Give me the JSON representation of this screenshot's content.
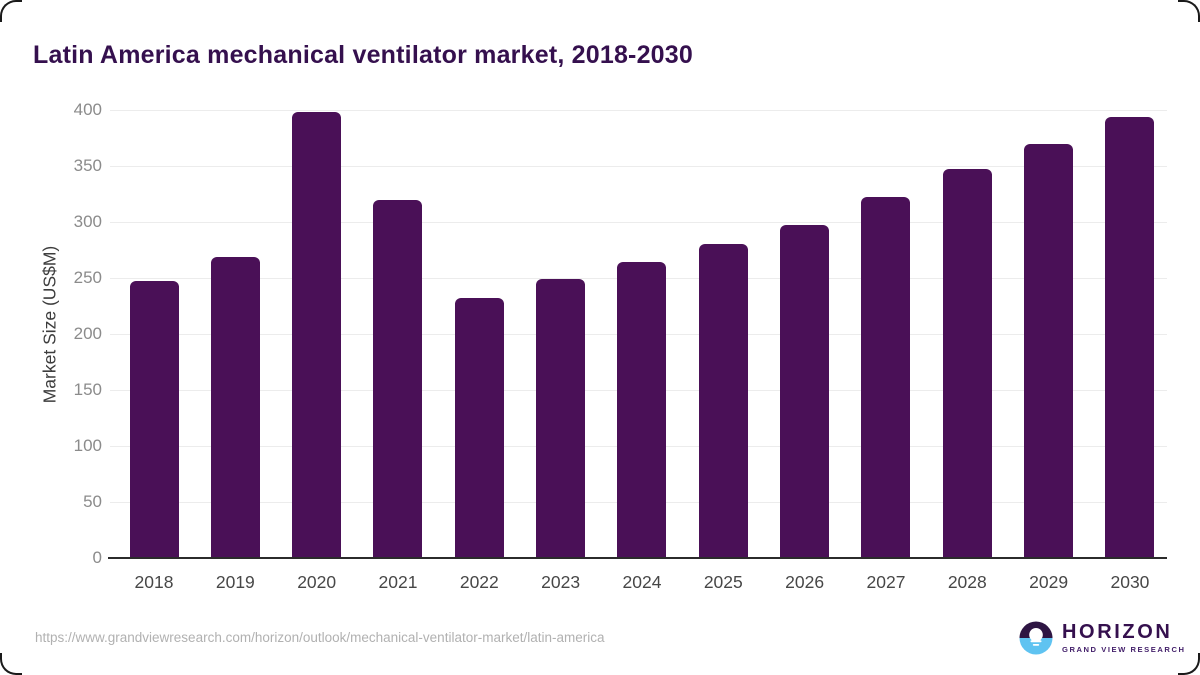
{
  "title": "Latin America mechanical ventilator market, 2018-2030",
  "footer": {
    "source_url": "https://www.grandviewresearch.com/horizon/outlook/mechanical-ventilator-market/latin-america"
  },
  "logo": {
    "name": "HORIZON",
    "subtitle": "GRAND VIEW RESEARCH",
    "icon": "horizon-sunset-circle",
    "icon_colors": {
      "top": "#2e1543",
      "bottom": "#5fc3f1",
      "sun": "#ffffff"
    }
  },
  "colors": {
    "bar": "#4a1057",
    "title_text": "#35104e",
    "gridline": "#ececec",
    "zero_line": "#2b2b2b",
    "y_tick_text": "#8b8b8b",
    "x_tick_text": "#474747",
    "footer_text": "#b1b1b1"
  },
  "chart_data": {
    "type": "bar",
    "title": "Latin America mechanical ventilator market, 2018-2030",
    "categories": [
      "2018",
      "2019",
      "2020",
      "2021",
      "2022",
      "2023",
      "2024",
      "2025",
      "2026",
      "2027",
      "2028",
      "2029",
      "2030"
    ],
    "values": [
      247,
      269,
      398,
      320,
      232,
      249,
      264,
      280,
      297,
      322,
      347,
      370,
      394
    ],
    "xlabel": "",
    "ylabel": "Market Size (US$M)",
    "ylim": [
      0,
      400
    ],
    "ytick_step": 50,
    "grid": true,
    "legend": false
  }
}
